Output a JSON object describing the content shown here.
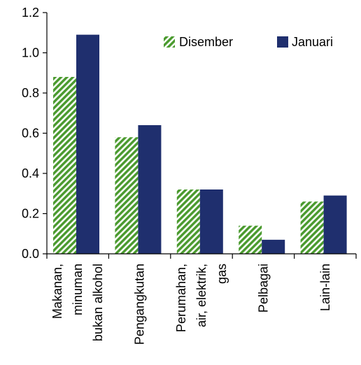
{
  "chart_data": {
    "type": "bar",
    "title": "",
    "xlabel": "",
    "ylabel": "",
    "ylim": [
      0,
      1.2
    ],
    "yticks": [
      "0.0",
      "0.2",
      "0.4",
      "0.6",
      "0.8",
      "1.0",
      "1.2"
    ],
    "grid": false,
    "legend_position": "top-right",
    "categories": [
      [
        "Makanan,",
        "minuman",
        "bukan alkohol"
      ],
      [
        "Pengangkutan"
      ],
      [
        "Perumahan,",
        "air, elektrik,",
        "gas"
      ],
      [
        "Pelbagai"
      ],
      [
        "Lain-lain"
      ]
    ],
    "series": [
      {
        "name": "Disember",
        "values": [
          0.88,
          0.58,
          0.32,
          0.14,
          0.26
        ],
        "color": "#4a9a2e",
        "pattern": "diagonal-stripes"
      },
      {
        "name": "Januari",
        "values": [
          1.09,
          0.64,
          0.32,
          0.07,
          0.29
        ],
        "color": "#1f2f6e",
        "pattern": "solid"
      }
    ]
  }
}
